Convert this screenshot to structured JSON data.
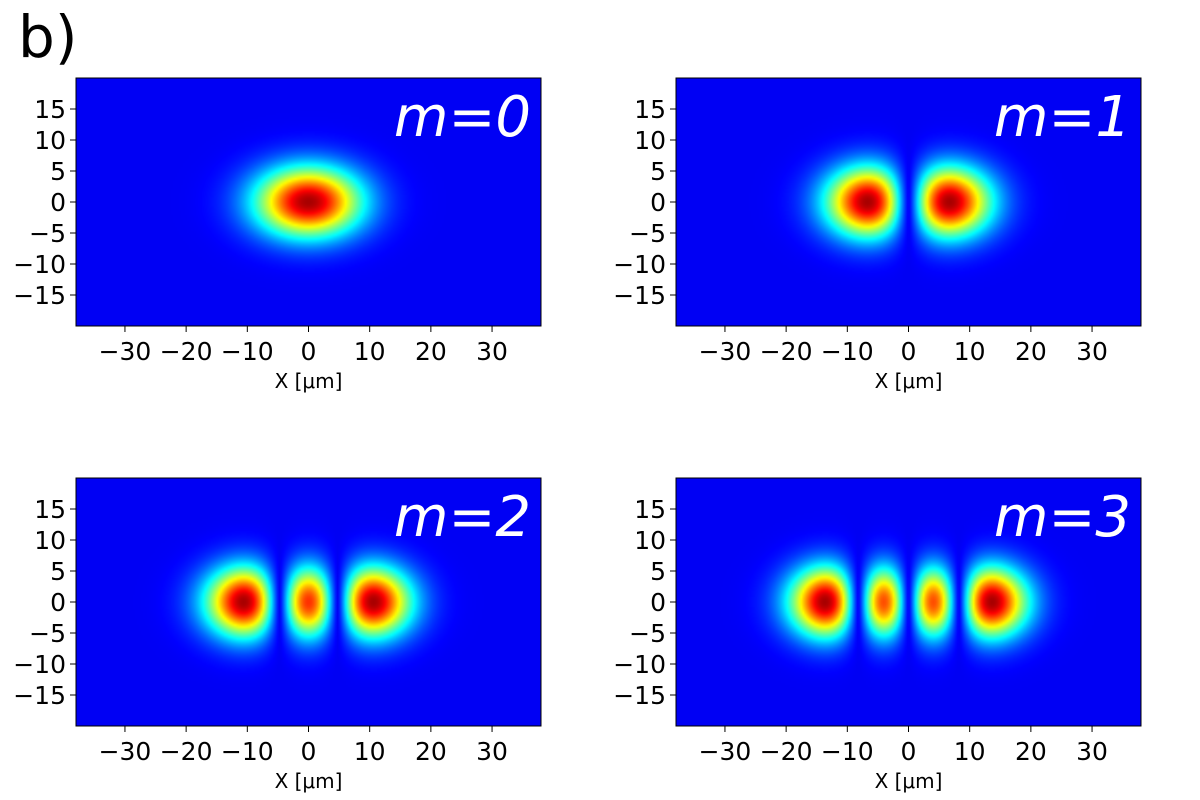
{
  "figure": {
    "panel_letter": "b)",
    "colormap": "jet",
    "background": "#ffffff"
  },
  "chart_data": [
    {
      "type": "heatmap",
      "title": "m=0",
      "mode": 0,
      "xlabel": "X [μm]",
      "ylabel": "",
      "xlim": [
        -38,
        38
      ],
      "ylim": [
        -20,
        20
      ],
      "xticks": [
        -30,
        -20,
        -10,
        0,
        10,
        20,
        30
      ],
      "xtick_labels": [
        "−30",
        "−20",
        "−10",
        "0",
        "10",
        "20",
        "30"
      ],
      "yticks": [
        15,
        10,
        5,
        0,
        -5,
        -10,
        -15
      ],
      "ytick_labels": [
        "15",
        "10",
        "5",
        "0",
        "−5",
        "−10",
        "−15"
      ],
      "lobe_centers_x": [
        0
      ],
      "nodal_lines_x": []
    },
    {
      "type": "heatmap",
      "title": "m=1",
      "mode": 1,
      "xlabel": "X [μm]",
      "ylabel": "",
      "xlim": [
        -38,
        38
      ],
      "ylim": [
        -20,
        20
      ],
      "xticks": [
        -30,
        -20,
        -10,
        0,
        10,
        20,
        30
      ],
      "xtick_labels": [
        "−30",
        "−20",
        "−10",
        "0",
        "10",
        "20",
        "30"
      ],
      "yticks": [
        15,
        10,
        5,
        0,
        -5,
        -10,
        -15
      ],
      "ytick_labels": [
        "15",
        "10",
        "5",
        "0",
        "−5",
        "−10",
        "−15"
      ],
      "lobe_centers_x": [
        -8,
        8
      ],
      "nodal_lines_x": [
        0
      ]
    },
    {
      "type": "heatmap",
      "title": "m=2",
      "mode": 2,
      "xlabel": "X [μm]",
      "ylabel": "",
      "xlim": [
        -38,
        38
      ],
      "ylim": [
        -20,
        20
      ],
      "xticks": [
        -30,
        -20,
        -10,
        0,
        10,
        20,
        30
      ],
      "xtick_labels": [
        "−30",
        "−20",
        "−10",
        "0",
        "10",
        "20",
        "30"
      ],
      "yticks": [
        15,
        10,
        5,
        0,
        -5,
        -10,
        -15
      ],
      "ytick_labels": [
        "15",
        "10",
        "5",
        "0",
        "−5",
        "−10",
        "−15"
      ],
      "lobe_centers_x": [
        -12,
        0,
        12
      ],
      "nodal_lines_x": [
        -6,
        6
      ]
    },
    {
      "type": "heatmap",
      "title": "m=3",
      "mode": 3,
      "xlabel": "X [μm]",
      "ylabel": "",
      "xlim": [
        -38,
        38
      ],
      "ylim": [
        -20,
        20
      ],
      "xticks": [
        -30,
        -20,
        -10,
        0,
        10,
        20,
        30
      ],
      "xtick_labels": [
        "−30",
        "−20",
        "−10",
        "0",
        "10",
        "20",
        "30"
      ],
      "yticks": [
        15,
        10,
        5,
        0,
        -5,
        -10,
        -15
      ],
      "ytick_labels": [
        "15",
        "10",
        "5",
        "0",
        "−5",
        "−10",
        "−15"
      ],
      "lobe_centers_x": [
        -15,
        -5,
        5,
        15
      ],
      "nodal_lines_x": [
        -10,
        0,
        10
      ]
    }
  ]
}
